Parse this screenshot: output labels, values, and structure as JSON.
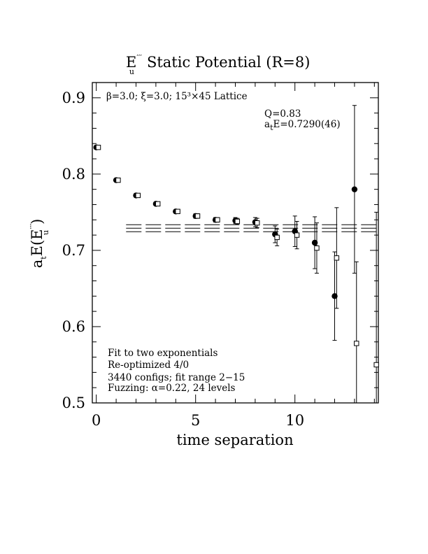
{
  "chart_data": {
    "type": "scatter",
    "title": {
      "main": "E",
      "sub": "u",
      "sup": "′′′",
      "rest": "Static Potential (R=8)"
    },
    "xlabel": "time separation",
    "ylabel": {
      "prefix": "a",
      "prefix_sub": "t",
      "mid": "E(E",
      "sup": "′′′",
      "sub": "u",
      "suffix": ")"
    },
    "xlim": [
      -0.2,
      14.2
    ],
    "ylim": [
      0.5,
      0.92
    ],
    "xticks": [
      0,
      5,
      10
    ],
    "xtick_labels": [
      "0",
      "5",
      "10"
    ],
    "yticks": [
      0.5,
      0.6,
      0.7,
      0.8,
      0.9
    ],
    "ytick_labels": [
      "0.5",
      "0.6",
      "0.7",
      "0.8",
      "0.9"
    ],
    "lattice_label": "β=3.0; ξ=3.0; 15³×45 Lattice",
    "fit_info": {
      "Q": "Q=0.83",
      "energy": {
        "prefix": "a",
        "prefix_sub": "t",
        "rest": "E=0.7290(46)"
      }
    },
    "notes": [
      "Fit to two exponentials",
      "Re-optimized 4/0",
      "3440 configs; fit range 2−15",
      "Fuzzing: α=0.22, 24 levels"
    ],
    "fit": {
      "x_start": 1.5,
      "x_end": 14.2,
      "center": 0.729,
      "error": 0.0046
    },
    "series": [
      {
        "marker": "filled-circle",
        "points": [
          {
            "x": 0,
            "y": 0.835,
            "err": 0.002
          },
          {
            "x": 1,
            "y": 0.792,
            "err": 0.002
          },
          {
            "x": 2,
            "y": 0.772,
            "err": 0.002
          },
          {
            "x": 3,
            "y": 0.761,
            "err": 0.002
          },
          {
            "x": 4,
            "y": 0.751,
            "err": 0.002
          },
          {
            "x": 5,
            "y": 0.745,
            "err": 0.003
          },
          {
            "x": 6,
            "y": 0.74,
            "err": 0.003
          },
          {
            "x": 7,
            "y": 0.739,
            "err": 0.004
          },
          {
            "x": 8,
            "y": 0.737,
            "err": 0.006
          },
          {
            "x": 9,
            "y": 0.721,
            "err": 0.011
          },
          {
            "x": 10,
            "y": 0.725,
            "err": 0.02
          },
          {
            "x": 11,
            "y": 0.71,
            "err": 0.034
          },
          {
            "x": 12,
            "y": 0.64,
            "err": 0.058
          },
          {
            "x": 13,
            "y": 0.78,
            "err": 0.11
          }
        ]
      },
      {
        "marker": "open-square",
        "points": [
          {
            "x": 0.1,
            "y": 0.835,
            "err": 0.002
          },
          {
            "x": 1.1,
            "y": 0.792,
            "err": 0.002
          },
          {
            "x": 2.1,
            "y": 0.772,
            "err": 0.002
          },
          {
            "x": 3.1,
            "y": 0.761,
            "err": 0.002
          },
          {
            "x": 4.1,
            "y": 0.751,
            "err": 0.002
          },
          {
            "x": 5.1,
            "y": 0.745,
            "err": 0.003
          },
          {
            "x": 6.1,
            "y": 0.74,
            "err": 0.003
          },
          {
            "x": 7.1,
            "y": 0.738,
            "err": 0.004
          },
          {
            "x": 8.1,
            "y": 0.736,
            "err": 0.006
          },
          {
            "x": 9.1,
            "y": 0.717,
            "err": 0.011
          },
          {
            "x": 10.1,
            "y": 0.72,
            "err": 0.018
          },
          {
            "x": 11.1,
            "y": 0.703,
            "err": 0.033
          },
          {
            "x": 12.1,
            "y": 0.69,
            "err": 0.066
          },
          {
            "x": 13.1,
            "y": 0.578,
            "err": 0.107
          },
          {
            "x": 14.1,
            "y": 0.55,
            "err": 0.2
          }
        ]
      }
    ]
  }
}
